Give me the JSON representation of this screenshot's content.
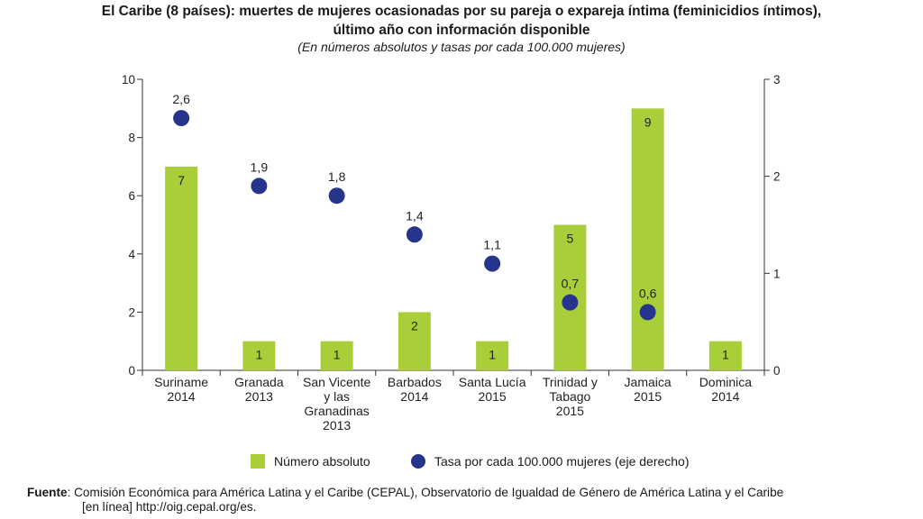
{
  "title_line1": "El Caribe (8 países): muertes de mujeres ocasionadas por su pareja o expareja íntima (feminicidios íntimos),",
  "title_line2": "último año con información disponible",
  "subtitle": "(En números absolutos y tasas por cada 100.000 mujeres)",
  "source_label": "Fuente",
  "source_text": ": Comisión Económica para América Latina y el Caribe (CEPAL), Observatorio de Igualdad de Género de América Latina y el Caribe",
  "source_text2": "[en línea] http://oig.cepal.org/es.",
  "colors": {
    "bar": "#a8cf3a",
    "dot": "#27348b"
  },
  "chart_data": {
    "type": "bar",
    "categories": [
      [
        "Suriname",
        "2014"
      ],
      [
        "Granada",
        "2013"
      ],
      [
        "San Vicente",
        "y las",
        "Granadinas",
        "2013"
      ],
      [
        "Barbados",
        "2014"
      ],
      [
        "Santa Lucía",
        "2015"
      ],
      [
        "Trinidad y",
        "Tabago",
        "2015"
      ],
      [
        "Jamaica",
        "2015"
      ],
      [
        "Dominica",
        "2014"
      ]
    ],
    "series": [
      {
        "name": "Número absoluto",
        "type": "bar",
        "axis": "left",
        "values": [
          7,
          1,
          1,
          2,
          1,
          5,
          9,
          1
        ],
        "labels": [
          "7",
          "1",
          "1",
          "2",
          "1",
          "5",
          "9",
          "1"
        ]
      },
      {
        "name": "Tasa por cada 100.000 mujeres (eje derecho)",
        "type": "scatter",
        "axis": "right",
        "values": [
          2.6,
          1.9,
          1.8,
          1.4,
          1.1,
          0.7,
          0.6,
          null
        ],
        "labels": [
          "2,6",
          "1,9",
          "1,8",
          "1,4",
          "1,1",
          "0,7",
          "0,6",
          null
        ]
      }
    ],
    "ylim_left": [
      0,
      10
    ],
    "yticks_left": [
      0,
      2,
      4,
      6,
      8,
      10
    ],
    "ylim_right": [
      0,
      3
    ],
    "yticks_right": [
      0,
      1,
      2,
      3
    ],
    "grid": false,
    "legend": "bottom"
  }
}
